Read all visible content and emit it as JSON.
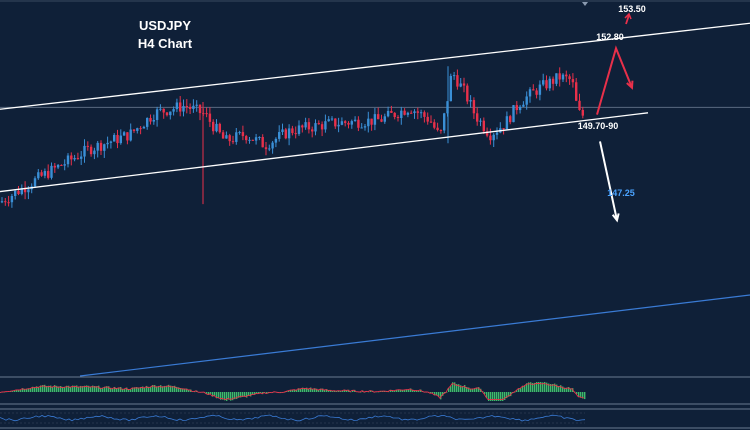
{
  "chart_data": {
    "type": "candlestick",
    "symbol": "USDJPY",
    "timeframe": "H4 Chart",
    "price_labels": {
      "upper_target": "153.50",
      "resistance": "152.80",
      "support": "149.70-90",
      "lower_target": "147.25"
    },
    "channel": {
      "upper": {
        "start": 151.15,
        "end": 153.55
      },
      "lower": {
        "start": 148.85,
        "end": 151.05
      }
    },
    "horizontal_level": 151.2,
    "ylim": [
      143.7,
      154.2
    ],
    "bullish_path": [
      151.0,
      152.85,
      151.75
    ],
    "bearish_path": [
      150.25,
      148.05
    ],
    "colors": {
      "background": "#0f2038",
      "bull_candle": "#3a8fd6",
      "bear_candle": "#e8304a",
      "channel_line": "#ffffff",
      "horizontal_line": "#5a6a80",
      "trend_line": "#3a7bd5",
      "bull_arrow": "#e8304a",
      "bear_arrow": "#ffffff",
      "lower_target_text": "#4aa3ff",
      "osc_positive": "#3dbb6a",
      "osc_signal": "#e8304a",
      "osc2_line": "#3a7bd5"
    },
    "oscillator_visible": true
  }
}
